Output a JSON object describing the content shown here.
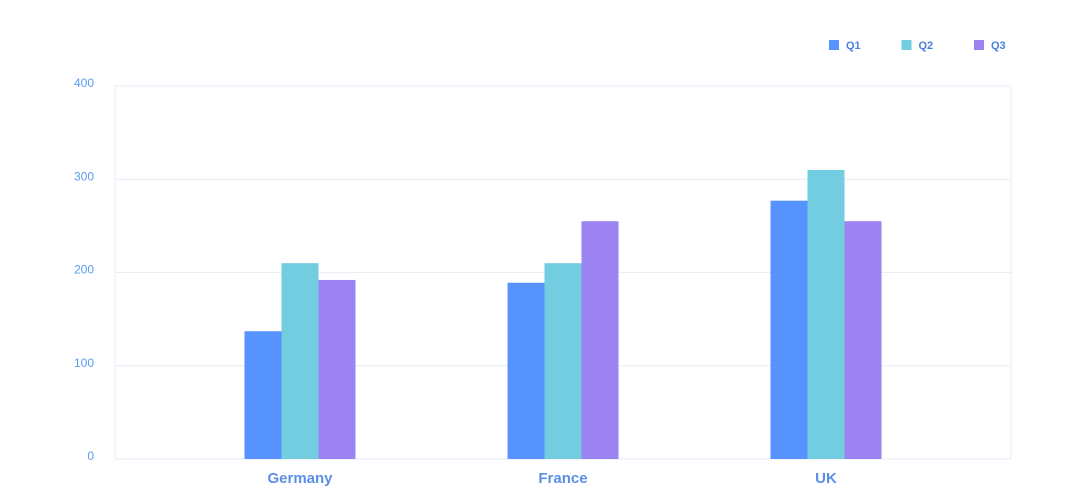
{
  "chart_data": {
    "type": "bar",
    "categories": [
      "Germany",
      "France",
      "UK"
    ],
    "series": [
      {
        "name": "Q1",
        "color": "#5793ff",
        "values": [
          137,
          189,
          277
        ]
      },
      {
        "name": "Q2",
        "color": "#72cde0",
        "values": [
          210,
          210,
          310
        ]
      },
      {
        "name": "Q3",
        "color": "#9b84f2",
        "values": [
          192,
          255,
          255
        ]
      }
    ],
    "ylim": [
      0,
      400
    ],
    "yticks": [
      0,
      100,
      200,
      300,
      400
    ],
    "grid": true,
    "legend": "top-right"
  }
}
